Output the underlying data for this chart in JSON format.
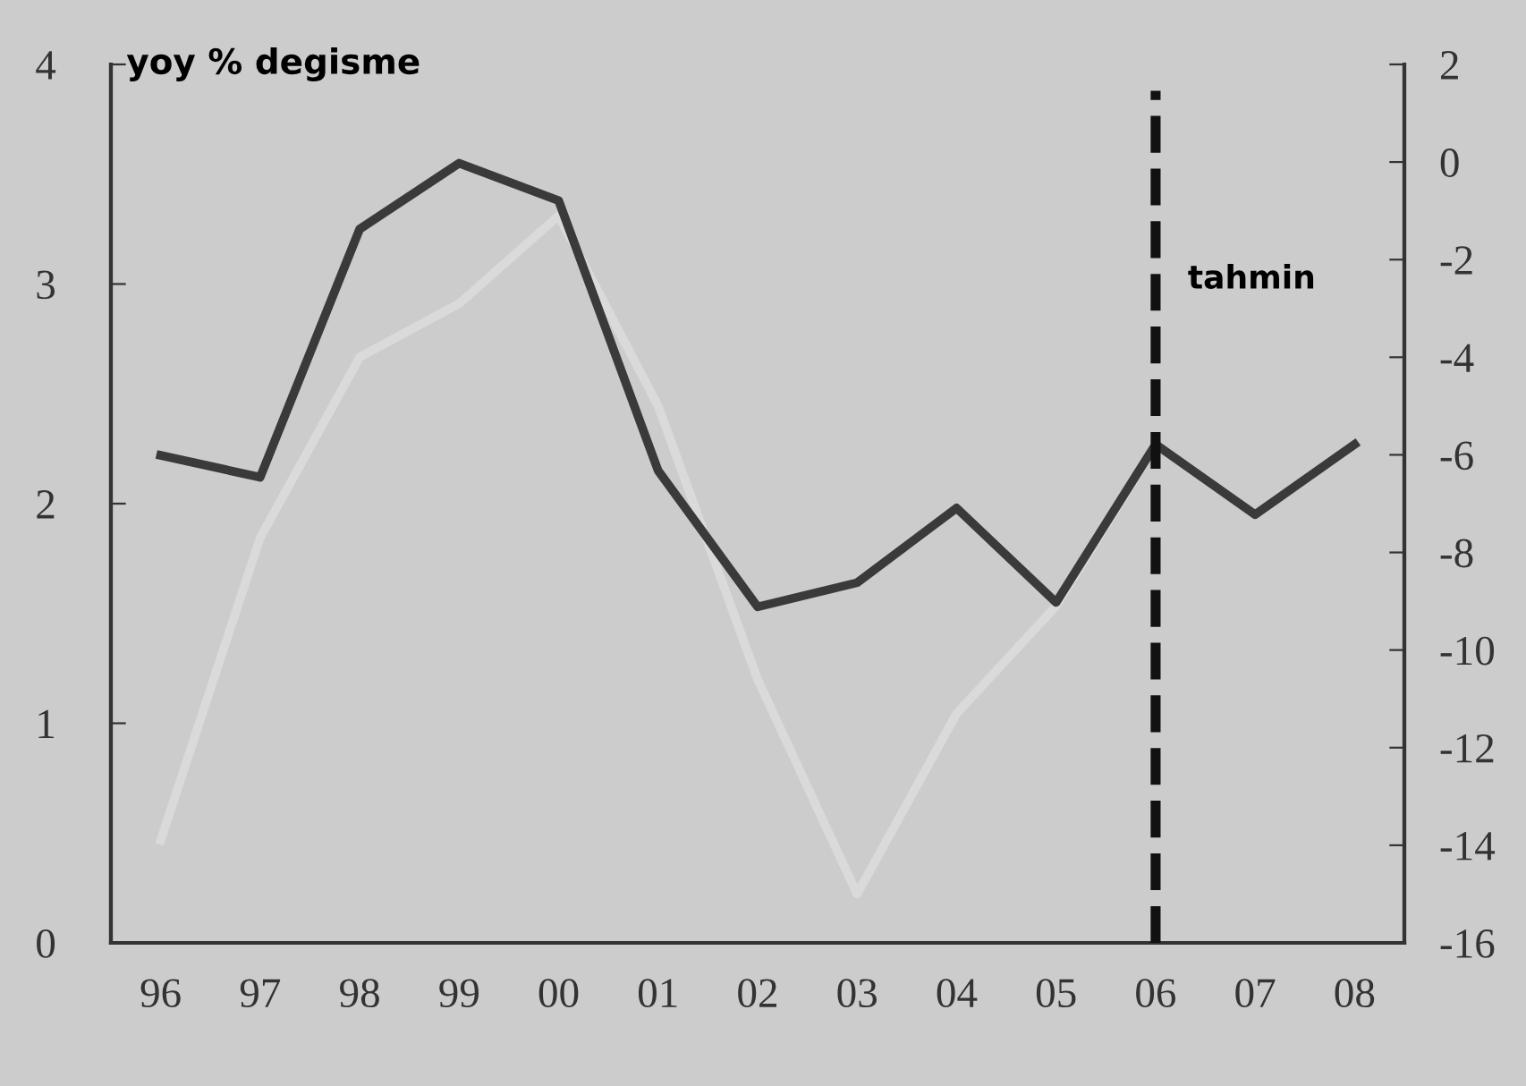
{
  "chart_data": {
    "type": "line",
    "ylabel": "yoy % degisme",
    "categories": [
      "96",
      "97",
      "98",
      "99",
      "00",
      "01",
      "02",
      "03",
      "04",
      "05",
      "06",
      "07",
      "08"
    ],
    "series": [
      {
        "color": "#3a3a3a",
        "values": [
          2.22,
          2.12,
          3.25,
          3.55,
          3.38,
          2.15,
          1.53,
          1.64,
          1.98,
          1.55,
          2.27,
          1.95,
          2.27
        ]
      },
      {
        "color": "#dadada",
        "axis": "y2",
        "values": [
          -13.9,
          -7.7,
          -4.0,
          -2.9,
          -1.1,
          -5,
          -10.6,
          -15,
          -11.3,
          -9.1,
          -5.8,
          null,
          null
        ]
      }
    ],
    "ylim": [
      0,
      4
    ],
    "yticks": [
      0,
      1,
      2,
      3,
      4
    ],
    "y2lim": [
      -16,
      2
    ],
    "y2ticks": [
      -16,
      -14,
      -12,
      -10,
      -8,
      -6,
      -4,
      -2,
      0,
      2
    ],
    "ref_lines": [
      {
        "axis": "x",
        "value": "06",
        "color": "#111111",
        "line_style": "dashed"
      }
    ],
    "annotations": [
      "tahmin"
    ],
    "grid": false,
    "legend": false,
    "marker": "none",
    "line_style": "solid"
  }
}
